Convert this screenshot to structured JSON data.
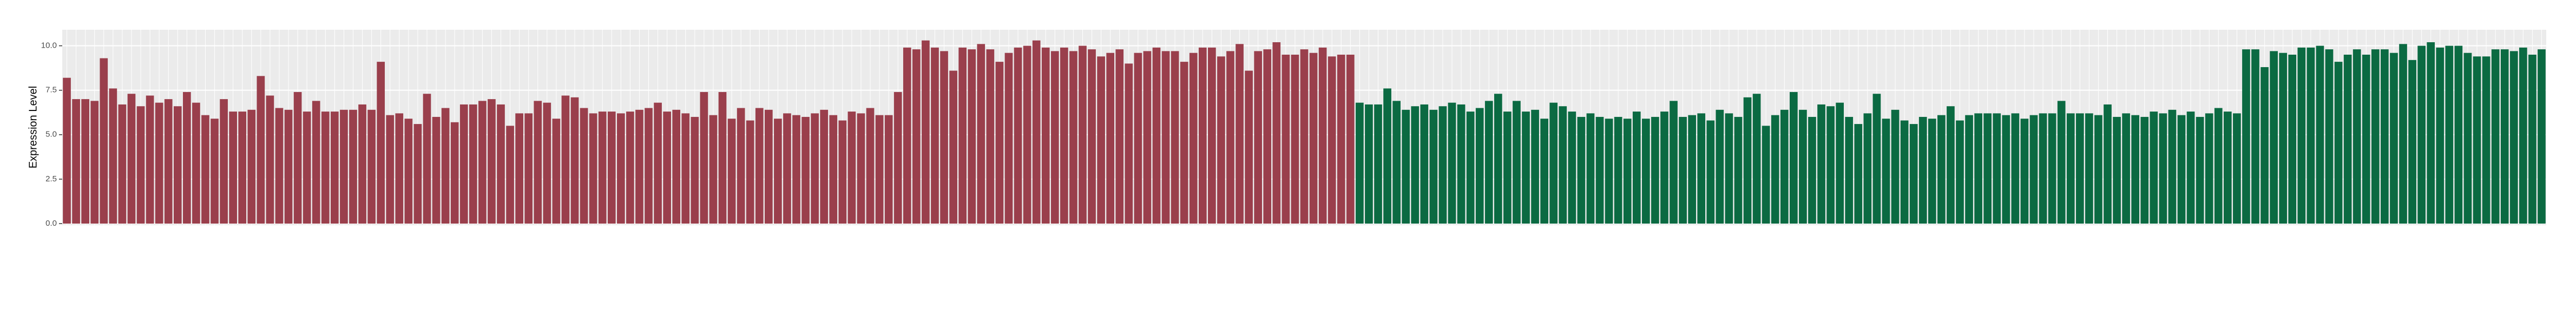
{
  "chart_data": {
    "type": "bar",
    "y_label": "Expression Level",
    "ylim": [
      0,
      10.9
    ],
    "yticks": [
      {
        "value": 0,
        "label": "0.0"
      },
      2.5,
      {
        "value": 5,
        "label": "5.0"
      },
      7.5,
      {
        "value": 10,
        "label": "10.0"
      }
    ],
    "grid": true,
    "series": [
      {
        "color": "#9a3f4c",
        "values": [
          8.2,
          7.0,
          7.0,
          6.9,
          9.3,
          7.6,
          6.7,
          7.3,
          6.6,
          7.2,
          6.8,
          7.0,
          6.6,
          7.4,
          6.8,
          6.1,
          5.9,
          7.0,
          6.3,
          6.3,
          6.4,
          8.3,
          7.2,
          6.5,
          6.4,
          7.4,
          6.3,
          6.9,
          6.3,
          6.3,
          6.4,
          6.4,
          6.7,
          6.4,
          9.1,
          6.1,
          6.2,
          5.9,
          5.6,
          7.3,
          6.0,
          6.5,
          5.7,
          6.7,
          6.7,
          6.9,
          7.0,
          6.7,
          5.5,
          6.2,
          6.2,
          6.9,
          6.8,
          5.9,
          7.2,
          7.1,
          6.5,
          6.2,
          6.3,
          6.3,
          6.2,
          6.3,
          6.4,
          6.5,
          6.8,
          6.3,
          6.4,
          6.2,
          6.0,
          7.4,
          6.1,
          7.4,
          5.9,
          6.5,
          5.8,
          6.5,
          6.4,
          5.9,
          6.2,
          6.1,
          6.0,
          6.2,
          6.4,
          6.1,
          5.8,
          6.3,
          6.2,
          6.5,
          6.1,
          6.1,
          7.4,
          9.9,
          9.8,
          10.3,
          9.9,
          9.7,
          8.6,
          9.9,
          9.8,
          10.1,
          9.8,
          9.1,
          9.6,
          9.9,
          10.0,
          10.3,
          9.9,
          9.7,
          9.9,
          9.7,
          10.0,
          9.8,
          9.4,
          9.6,
          9.8,
          9.0,
          9.6,
          9.7,
          9.9,
          9.7,
          9.7,
          9.1,
          9.6,
          9.9,
          9.9,
          9.4,
          9.7,
          10.1,
          8.6,
          9.7,
          9.8,
          10.2,
          9.5,
          9.5,
          9.8,
          9.6,
          9.9,
          9.4,
          9.5,
          9.5,
          null,
          null,
          null,
          null,
          null,
          null,
          null,
          null,
          null,
          null,
          null,
          null,
          null,
          null,
          null,
          null,
          null,
          null,
          null,
          null,
          null,
          null,
          null,
          null,
          null,
          null,
          null,
          null,
          null,
          null,
          null,
          null,
          null,
          null,
          null,
          null,
          null,
          null,
          null,
          null,
          null,
          null,
          null,
          null,
          null,
          null,
          null,
          null,
          null,
          null,
          null,
          null,
          null,
          null,
          null,
          null,
          null,
          null,
          null,
          null,
          null,
          null,
          null,
          null,
          null,
          null,
          null,
          null,
          null,
          null,
          null,
          null,
          null,
          null,
          null,
          null,
          null,
          null,
          null,
          null,
          null,
          null,
          null,
          null,
          null,
          null,
          null,
          null,
          null,
          null,
          null,
          null,
          null,
          null,
          null,
          null,
          null,
          null,
          null,
          null,
          null,
          null,
          null,
          null,
          null,
          null,
          null,
          null,
          null,
          null,
          null,
          null,
          null,
          null,
          null,
          null,
          null,
          null,
          null,
          null,
          null,
          null,
          null,
          null,
          null,
          null,
          null,
          null,
          null
        ]
      },
      {
        "color": "#0b6a42",
        "values": [
          null,
          null,
          null,
          null,
          null,
          null,
          null,
          null,
          null,
          null,
          null,
          null,
          null,
          null,
          null,
          null,
          null,
          null,
          null,
          null,
          null,
          null,
          null,
          null,
          null,
          null,
          null,
          null,
          null,
          null,
          null,
          null,
          null,
          null,
          null,
          null,
          null,
          null,
          null,
          null,
          null,
          null,
          null,
          null,
          null,
          null,
          null,
          null,
          null,
          null,
          null,
          null,
          null,
          null,
          null,
          null,
          null,
          null,
          null,
          null,
          null,
          null,
          null,
          null,
          null,
          null,
          null,
          null,
          null,
          null,
          null,
          null,
          null,
          null,
          null,
          null,
          null,
          null,
          null,
          null,
          null,
          null,
          null,
          null,
          null,
          null,
          null,
          null,
          null,
          null,
          null,
          null,
          null,
          null,
          null,
          null,
          null,
          null,
          null,
          null,
          null,
          null,
          null,
          null,
          null,
          null,
          null,
          null,
          null,
          null,
          null,
          null,
          null,
          null,
          null,
          null,
          null,
          null,
          null,
          null,
          null,
          null,
          null,
          null,
          null,
          null,
          null,
          null,
          null,
          null,
          null,
          null,
          null,
          null,
          null,
          null,
          null,
          null,
          null,
          null,
          6.8,
          6.7,
          6.7,
          7.6,
          6.9,
          6.4,
          6.6,
          6.7,
          6.4,
          6.6,
          6.8,
          6.7,
          6.3,
          6.5,
          6.9,
          7.3,
          6.3,
          6.9,
          6.3,
          6.4,
          5.9,
          6.8,
          6.6,
          6.3,
          6.0,
          6.2,
          6.0,
          5.9,
          6.0,
          5.9,
          6.3,
          5.9,
          6.0,
          6.3,
          6.9,
          6.0,
          6.1,
          6.2,
          5.8,
          6.4,
          6.2,
          6.0,
          7.1,
          7.3,
          5.5,
          6.1,
          6.4,
          7.4,
          6.4,
          6.0,
          6.7,
          6.6,
          6.8,
          6.0,
          5.6,
          6.2,
          7.3,
          5.9,
          6.4,
          5.8,
          5.6,
          6.0,
          5.9,
          6.1,
          6.6,
          5.8,
          6.1,
          6.2,
          6.2,
          6.2,
          6.1,
          6.2,
          5.9,
          6.1,
          6.2,
          6.2,
          6.9,
          6.2,
          6.2,
          6.2,
          6.1,
          6.7,
          6.0,
          6.2,
          6.1,
          6.0,
          6.3,
          6.2,
          6.4,
          6.1,
          6.3,
          6.0,
          6.2,
          6.5,
          6.3,
          6.2,
          9.8,
          9.8,
          8.8,
          9.7,
          9.6,
          9.5,
          9.9,
          9.9,
          10.0,
          9.8,
          9.1,
          9.5,
          9.8,
          9.5,
          9.8,
          9.8,
          9.6,
          10.1,
          9.2,
          10.0,
          10.2,
          9.9,
          10.0,
          10.0,
          9.6,
          9.4,
          9.4,
          9.8,
          9.8,
          9.7,
          9.9,
          9.5,
          9.8
        ]
      }
    ]
  }
}
